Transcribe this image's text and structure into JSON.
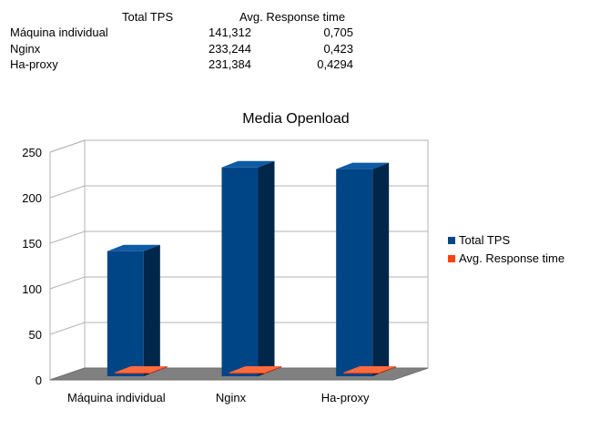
{
  "table": {
    "headers": [
      "",
      "Total TPS",
      "Avg. Response time"
    ],
    "rows": [
      {
        "label": "Máquina individual",
        "tps": "141,312",
        "resp": "0,705"
      },
      {
        "label": "Nginx",
        "tps": "233,244",
        "resp": "0,423"
      },
      {
        "label": "Ha-proxy",
        "tps": "231,384",
        "resp": "0,4294"
      }
    ]
  },
  "chart_data": {
    "type": "bar",
    "title": "Media Openload",
    "categories": [
      "Máquina individual",
      "Nginx",
      "Ha-proxy"
    ],
    "series": [
      {
        "name": "Total TPS",
        "values": [
          141.312,
          233.244,
          231.384
        ],
        "color": "#004586"
      },
      {
        "name": "Avg. Response time",
        "values": [
          0.705,
          0.423,
          0.4294
        ],
        "color": "#ff420e"
      }
    ],
    "yticks": [
      "0",
      "50",
      "100",
      "150",
      "200",
      "250"
    ],
    "ylim": [
      0,
      250
    ],
    "grid": true,
    "legend": "right",
    "three_d": true
  }
}
